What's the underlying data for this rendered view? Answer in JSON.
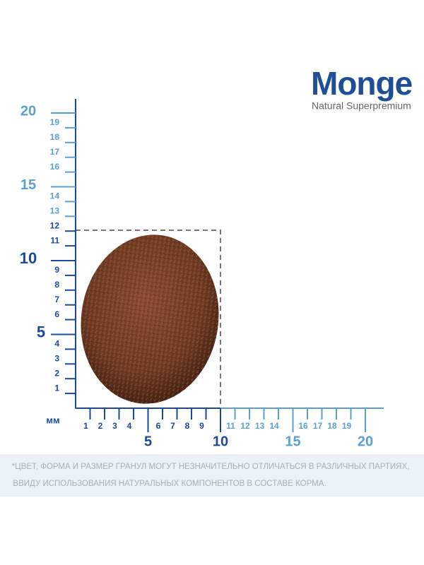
{
  "brand": {
    "name": "Monge",
    "tagline": "Natural Superpremium"
  },
  "ruler": {
    "unit": "мм",
    "y_labels": [
      1,
      2,
      3,
      4,
      5,
      6,
      7,
      8,
      9,
      10,
      11,
      12,
      13,
      14,
      15,
      16,
      17,
      18,
      19,
      20
    ],
    "x_labels": [
      1,
      2,
      3,
      4,
      5,
      6,
      7,
      8,
      9,
      10,
      11,
      12,
      13,
      14,
      15,
      16,
      17,
      18,
      19,
      20
    ]
  },
  "note": [
    "*ЦВЕТ, ФОРМА И РАЗМЕР ГРАНУЛ МОГУТ НЕЗНАЧИТЕЛЬНО ОТЛИЧАТЬСЯ В РАЗЛИЧНЫХ ПАРТИЯХ,",
    "ВВИДУ ИСПОЛЬЗОВАНИЯ НАТУРАЛЬНЫХ КОМПОНЕНТОВ В СОСТАВЕ КОРМА."
  ]
}
